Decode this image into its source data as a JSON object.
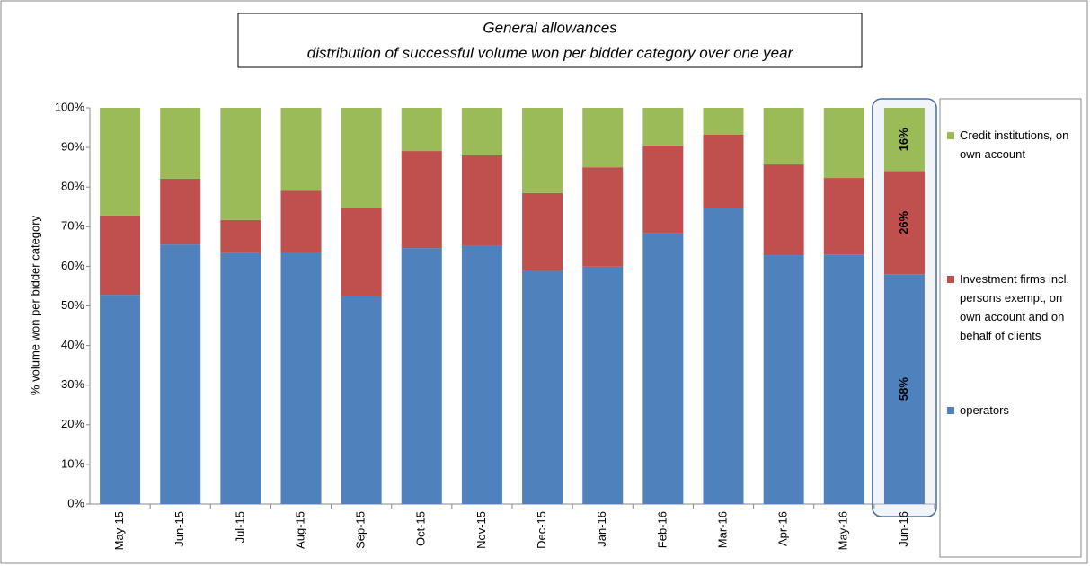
{
  "chart_data": {
    "type": "stacked_bar",
    "title": "General allowances",
    "subtitle": "distribution of successful volume won per bidder category over one year",
    "y_label": "% volume won per bidder category",
    "categories": [
      "May-15",
      "Jun-15",
      "Jul-15",
      "Aug-15",
      "Sep-15",
      "Oct-15",
      "Nov-15",
      "Dec-15",
      "Jan-16",
      "Feb-16",
      "Mar-16",
      "Apr-16",
      "May-16",
      "Jun-16"
    ],
    "series": [
      {
        "name": "operators",
        "color": "#4f81bd",
        "values": [
          52.8,
          65.5,
          63.3,
          63.5,
          52.4,
          64.6,
          65.1,
          59.0,
          59.9,
          68.3,
          74.6,
          62.8,
          63.0,
          58
        ],
        "value_labels": [
          null,
          null,
          null,
          null,
          null,
          null,
          null,
          null,
          null,
          null,
          null,
          null,
          null,
          "58%"
        ]
      },
      {
        "name": "Investment firms incl. persons exempt, on own account and on behalf of clients",
        "color": "#c0504d",
        "values": [
          20.0,
          16.6,
          8.4,
          15.6,
          22.2,
          24.5,
          22.9,
          19.5,
          25.1,
          22.2,
          18.6,
          22.9,
          19.3,
          26
        ],
        "value_labels": [
          null,
          null,
          null,
          null,
          null,
          null,
          null,
          null,
          null,
          null,
          null,
          null,
          null,
          "26%"
        ]
      },
      {
        "name": "Credit institutions, on own account",
        "color": "#9bbb59",
        "values": [
          27.2,
          17.9,
          28.3,
          20.9,
          25.4,
          10.9,
          12.0,
          21.5,
          15.0,
          9.5,
          6.8,
          14.3,
          17.7,
          16
        ],
        "value_labels": [
          null,
          null,
          null,
          null,
          null,
          null,
          null,
          null,
          null,
          null,
          null,
          null,
          null,
          "16%"
        ]
      }
    ],
    "ylim": [
      0,
      100
    ],
    "yticks": [
      {
        "value": 0,
        "label": "0%"
      },
      {
        "value": 10,
        "label": "10%"
      },
      {
        "value": 20,
        "label": "20%"
      },
      {
        "value": 30,
        "label": "30%"
      },
      {
        "value": 40,
        "label": "40%"
      },
      {
        "value": 50,
        "label": "50%"
      },
      {
        "value": 60,
        "label": "60%"
      },
      {
        "value": 70,
        "label": "70%"
      },
      {
        "value": 80,
        "label": "80%"
      },
      {
        "value": 90,
        "label": "90%"
      },
      {
        "value": 100,
        "label": "100%"
      }
    ],
    "grid": false
  }
}
